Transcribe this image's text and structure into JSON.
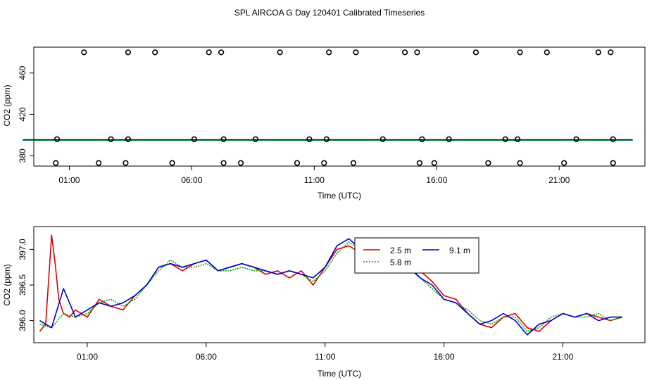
{
  "title": "SPL AIRCOA G  Day 120401  Calibrated Timeseries",
  "colors": {
    "flag_marker": "#000000",
    "line_a": "#dd0000",
    "line_b": "#00aa00",
    "line_c": "#0000cc"
  },
  "chart_data": [
    {
      "type": "scatter",
      "xlabel": "Time (UTC)",
      "ylabel": "CO2 (ppm)",
      "x_unit": "hours UTC",
      "xlim": [
        -0.45,
        24.5
      ],
      "ylim": [
        370,
        485
      ],
      "xticks": [
        {
          "value": 1,
          "label": "01:00"
        },
        {
          "value": 6,
          "label": "06:00"
        },
        {
          "value": 11,
          "label": "11:00"
        },
        {
          "value": 16,
          "label": "16:00"
        },
        {
          "value": 21,
          "label": "21:00"
        }
      ],
      "yticks": [
        {
          "value": 380,
          "label": "380"
        },
        {
          "value": 420,
          "label": "420"
        },
        {
          "value": 460,
          "label": "460"
        }
      ],
      "grid": false,
      "line": {
        "x": [
          -0.9,
          24.0
        ],
        "y": [
          395.3,
          395.3
        ]
      },
      "markers": [
        {
          "x": 0.45,
          "y": 373
        },
        {
          "x": 0.5,
          "y": 396
        },
        {
          "x": 1.6,
          "y": 480
        },
        {
          "x": 2.2,
          "y": 373
        },
        {
          "x": 2.7,
          "y": 396
        },
        {
          "x": 3.3,
          "y": 373
        },
        {
          "x": 3.4,
          "y": 396
        },
        {
          "x": 3.4,
          "y": 480
        },
        {
          "x": 4.5,
          "y": 480
        },
        {
          "x": 5.2,
          "y": 373
        },
        {
          "x": 6.1,
          "y": 396
        },
        {
          "x": 6.7,
          "y": 480
        },
        {
          "x": 7.2,
          "y": 480
        },
        {
          "x": 7.3,
          "y": 396
        },
        {
          "x": 7.3,
          "y": 373
        },
        {
          "x": 8.0,
          "y": 373
        },
        {
          "x": 8.6,
          "y": 396
        },
        {
          "x": 9.6,
          "y": 480
        },
        {
          "x": 10.3,
          "y": 373
        },
        {
          "x": 10.8,
          "y": 396
        },
        {
          "x": 11.4,
          "y": 373
        },
        {
          "x": 11.5,
          "y": 396
        },
        {
          "x": 11.6,
          "y": 480
        },
        {
          "x": 12.6,
          "y": 373
        },
        {
          "x": 12.7,
          "y": 480
        },
        {
          "x": 13.8,
          "y": 396
        },
        {
          "x": 14.7,
          "y": 480
        },
        {
          "x": 15.2,
          "y": 480
        },
        {
          "x": 15.3,
          "y": 373
        },
        {
          "x": 15.4,
          "y": 396
        },
        {
          "x": 15.9,
          "y": 373
        },
        {
          "x": 16.5,
          "y": 396
        },
        {
          "x": 17.6,
          "y": 480
        },
        {
          "x": 18.1,
          "y": 373
        },
        {
          "x": 18.8,
          "y": 396
        },
        {
          "x": 19.3,
          "y": 396
        },
        {
          "x": 19.4,
          "y": 373
        },
        {
          "x": 19.4,
          "y": 480
        },
        {
          "x": 20.5,
          "y": 480
        },
        {
          "x": 21.2,
          "y": 373
        },
        {
          "x": 21.7,
          "y": 396
        },
        {
          "x": 22.6,
          "y": 480
        },
        {
          "x": 23.1,
          "y": 480
        },
        {
          "x": 23.2,
          "y": 373
        },
        {
          "x": 23.2,
          "y": 396
        }
      ]
    },
    {
      "type": "line",
      "xlabel": "Time (UTC)",
      "ylabel": "CO2 (ppm)",
      "x_unit": "hours UTC",
      "xlim": [
        -1.25,
        24.45
      ],
      "ylim": [
        395.69,
        397.32
      ],
      "xticks": [
        {
          "value": 1,
          "label": "01:00"
        },
        {
          "value": 6,
          "label": "06:00"
        },
        {
          "value": 11,
          "label": "11:00"
        },
        {
          "value": 16,
          "label": "16:00"
        },
        {
          "value": 21,
          "label": "21:00"
        }
      ],
      "yticks": [
        {
          "value": 396.0,
          "label": "396.0"
        },
        {
          "value": 396.5,
          "label": "396.5"
        },
        {
          "value": 397.0,
          "label": "397.0"
        }
      ],
      "grid": false,
      "legend_placement": "top-right",
      "series": [
        {
          "name": "2.5 m",
          "color": "#dd0000",
          "x": [
            -1.0,
            -0.75,
            -0.5,
            -0.35,
            -0.2,
            0.0,
            0.25,
            0.5,
            1.0,
            1.5,
            2.0,
            2.5,
            3.0,
            3.5,
            4.0,
            4.5,
            5.0,
            5.5,
            6.0,
            6.5,
            7.0,
            7.5,
            8.0,
            8.5,
            9.0,
            9.5,
            10.0,
            10.5,
            11.0,
            11.5,
            12.0,
            12.5,
            13.0,
            13.5,
            14.0,
            14.5,
            15.0,
            15.5,
            16.0,
            16.5,
            17.0,
            17.5,
            18.0,
            18.5,
            19.0,
            19.5,
            20.0,
            20.5,
            21.0,
            21.5,
            22.0,
            22.5,
            23.0,
            23.5
          ],
          "y": [
            395.85,
            395.95,
            397.2,
            396.8,
            396.3,
            396.1,
            396.05,
            396.15,
            396.05,
            396.3,
            396.2,
            396.15,
            396.35,
            396.5,
            396.75,
            396.8,
            396.7,
            396.8,
            396.85,
            396.7,
            396.75,
            396.8,
            396.75,
            396.65,
            396.7,
            396.6,
            396.7,
            396.5,
            396.75,
            397.0,
            397.05,
            396.95,
            397.15,
            397.1,
            397.05,
            396.8,
            396.7,
            396.55,
            396.35,
            396.3,
            396.1,
            395.95,
            395.9,
            396.05,
            396.1,
            395.9,
            395.85,
            396.0,
            396.1,
            396.05,
            396.1,
            396.05,
            396.0,
            396.05
          ]
        },
        {
          "name": "5.8 m",
          "color": "#00aa00",
          "x": [
            -1.0,
            -0.5,
            0.0,
            0.5,
            1.0,
            1.5,
            2.0,
            2.5,
            3.0,
            3.5,
            4.0,
            4.5,
            5.0,
            5.5,
            6.0,
            6.5,
            7.0,
            7.5,
            8.0,
            8.5,
            9.0,
            9.5,
            10.0,
            10.5,
            11.0,
            11.5,
            12.0,
            12.5,
            13.0,
            13.5,
            14.0,
            14.5,
            15.0,
            15.5,
            16.0,
            16.5,
            17.0,
            17.5,
            18.0,
            18.5,
            19.0,
            19.5,
            20.0,
            20.5,
            21.0,
            21.5,
            22.0,
            22.5,
            23.0,
            23.5
          ],
          "y": [
            395.95,
            395.9,
            396.1,
            396.05,
            396.1,
            396.25,
            396.3,
            396.2,
            396.3,
            396.5,
            396.7,
            396.85,
            396.75,
            396.75,
            396.8,
            396.7,
            396.7,
            396.75,
            396.7,
            396.7,
            396.65,
            396.7,
            396.65,
            396.55,
            396.7,
            396.95,
            397.1,
            397.0,
            397.1,
            397.05,
            397.0,
            396.8,
            396.6,
            396.45,
            396.3,
            396.25,
            396.15,
            396.0,
            395.95,
            396.05,
            396.05,
            395.85,
            395.9,
            396.05,
            396.1,
            396.05,
            396.05,
            396.1,
            396.0,
            396.05
          ]
        },
        {
          "name": "9.1 m",
          "color": "#0000cc",
          "x": [
            -1.0,
            -0.5,
            0.0,
            0.5,
            1.0,
            1.5,
            2.0,
            2.5,
            3.0,
            3.5,
            4.0,
            4.5,
            5.0,
            5.5,
            6.0,
            6.5,
            7.0,
            7.5,
            8.0,
            8.5,
            9.0,
            9.5,
            10.0,
            10.5,
            11.0,
            11.5,
            12.0,
            12.5,
            13.0,
            13.5,
            14.0,
            14.5,
            15.0,
            15.5,
            16.0,
            16.5,
            17.0,
            17.5,
            18.0,
            18.5,
            19.0,
            19.5,
            20.0,
            20.5,
            21.0,
            21.5,
            22.0,
            22.5,
            23.0,
            23.5
          ],
          "y": [
            396.0,
            395.9,
            396.45,
            396.05,
            396.15,
            396.25,
            396.2,
            396.25,
            396.35,
            396.5,
            396.75,
            396.8,
            396.75,
            396.8,
            396.85,
            396.7,
            396.75,
            396.8,
            396.75,
            396.7,
            396.65,
            396.7,
            396.65,
            396.6,
            396.75,
            397.05,
            397.15,
            397.0,
            397.15,
            397.1,
            397.0,
            396.75,
            396.6,
            396.5,
            396.3,
            396.25,
            396.1,
            395.95,
            396.0,
            396.1,
            396.0,
            395.8,
            395.95,
            396.0,
            396.1,
            396.05,
            396.1,
            396.0,
            396.05,
            396.05
          ]
        }
      ]
    }
  ]
}
